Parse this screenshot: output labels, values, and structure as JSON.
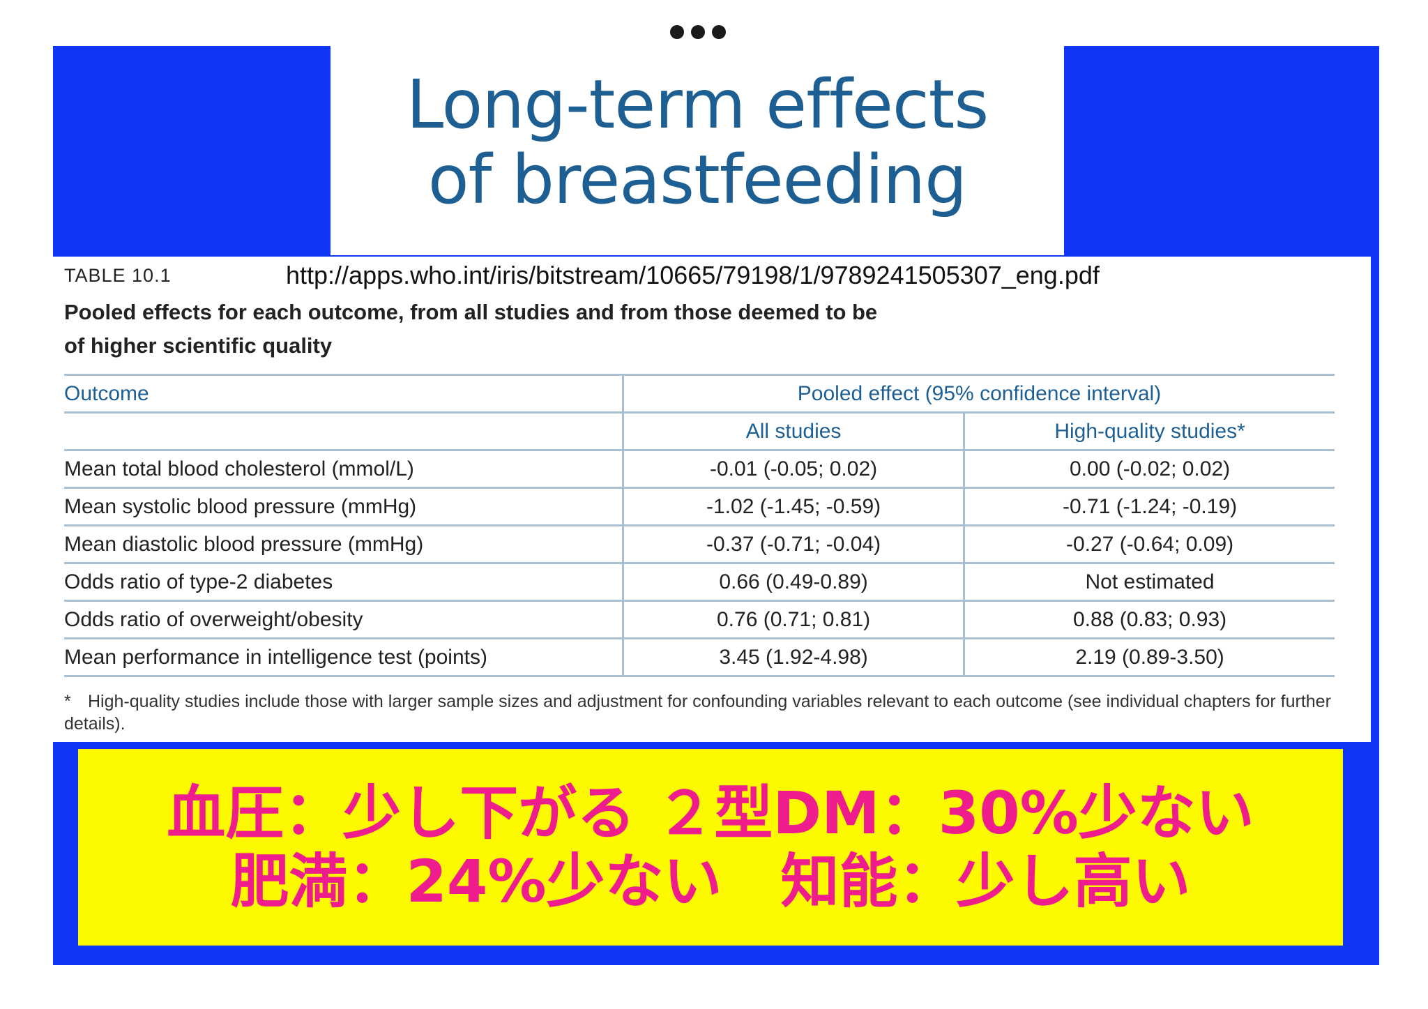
{
  "title": {
    "line1": "Long-term effects",
    "line2": "of breastfeeding"
  },
  "table_label": "TABLE 10.1",
  "source_url": "http://apps.who.int/iris/bitstream/10665/79198/1/9789241505307_eng.pdf",
  "caption": {
    "line1": "Pooled effects for each outcome, from all studies and from those deemed to be",
    "line2": "of higher scientific quality"
  },
  "table": {
    "header": {
      "outcome": "Outcome",
      "pooled": "Pooled effect (95% confidence interval)",
      "all": "All studies",
      "high": "High-quality studies*"
    },
    "rows": [
      {
        "outcome": "Mean total blood cholesterol (mmol/L)",
        "all": "-0.01 (-0.05; 0.02)",
        "high": "0.00 (-0.02; 0.02)"
      },
      {
        "outcome": "Mean systolic blood pressure (mmHg)",
        "all": "-1.02 (-1.45; -0.59)",
        "high": "-0.71 (-1.24; -0.19)"
      },
      {
        "outcome": "Mean diastolic blood pressure (mmHg)",
        "all": "-0.37 (-0.71; -0.04)",
        "high": "-0.27 (-0.64; 0.09)"
      },
      {
        "outcome": "Odds ratio of type-2 diabetes",
        "all": "0.66 (0.49-0.89)",
        "high": "Not estimated"
      },
      {
        "outcome": "Odds ratio of overweight/obesity",
        "all": "0.76 (0.71; 0.81)",
        "high": "0.88 (0.83; 0.93)"
      },
      {
        "outcome": "Mean performance in intelligence test (points)",
        "all": "3.45 (1.92-4.98)",
        "high": "2.19 (0.89-3.50)"
      }
    ]
  },
  "footnote": {
    "mark": "*",
    "text": "High-quality studies include those with larger sample sizes and adjustment for confounding variables relevant to each outcome (see individual chapters for further details)."
  },
  "summary": {
    "line1": "血圧：少し下がる ２型DM：30%少ない",
    "line2": "肥満：24%少ない　知能：少し高い"
  },
  "colors": {
    "frame": "#1135f5",
    "title": "#1d5f92",
    "summary_bg": "#fdfa00",
    "summary_text": "#ee1c8c",
    "table_rule": "#a9c0d2"
  }
}
